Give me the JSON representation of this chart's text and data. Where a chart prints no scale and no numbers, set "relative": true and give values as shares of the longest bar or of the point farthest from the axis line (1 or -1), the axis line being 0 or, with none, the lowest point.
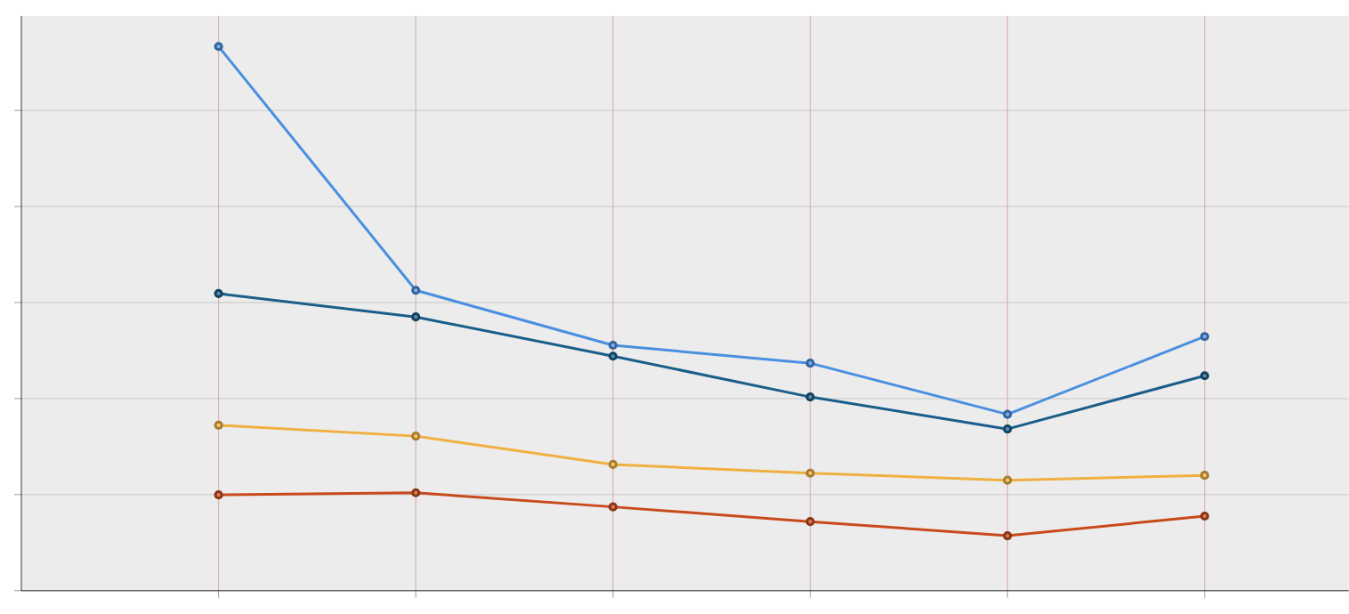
{
  "chart_data": {
    "type": "line",
    "relative": true,
    "grid": true,
    "marker": "circle",
    "line_style": "solid",
    "categories": [
      null,
      null,
      null,
      null,
      null,
      null
    ],
    "series": [
      {
        "color": "#4a8fe0",
        "values": [
          1,
          0.552,
          0.451,
          0.418,
          0.324,
          0.467
        ]
      },
      {
        "color": "#1a5e8a",
        "values": [
          0.546,
          0.503,
          0.431,
          0.356,
          0.297,
          0.395
        ]
      },
      {
        "color": "#f0b040",
        "values": [
          0.304,
          0.284,
          0.232,
          0.216,
          0.203,
          0.212
        ]
      },
      {
        "color": "#c84a1c",
        "values": [
          0.176,
          0.18,
          0.154,
          0.127,
          0.101,
          0.137
        ]
      }
    ]
  }
}
